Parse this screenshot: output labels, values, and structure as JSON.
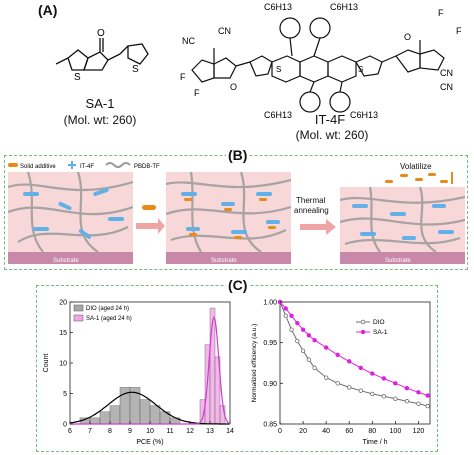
{
  "panel_a": {
    "label": "(A)",
    "sa1": {
      "name": "SA-1",
      "mol_wt": "(Mol. wt: 260)"
    },
    "it4f": {
      "name": "IT-4F",
      "mol_wt": "(Mol. wt: 260)"
    },
    "atoms": {
      "s": "S",
      "o": "O",
      "f": "F",
      "cn": "CN",
      "nc": "NC",
      "c6h13": "C6H13"
    }
  },
  "panel_b": {
    "label": "(B)",
    "legend": {
      "solid_additive": "Solid additive",
      "it4f": "IT-4F",
      "pbdb": "PBDB-TF"
    },
    "substrate": "Substrate",
    "thermal": "Thermal",
    "annealing": "annealing",
    "volatilize": "Volatilize",
    "colors": {
      "additive": "#e88b1a",
      "it4f": "#62b0e8",
      "polymer": "#9a9a9a",
      "film": "#f7d7d7",
      "substrate": "#c889a8"
    }
  },
  "panel_c": {
    "label": "(C)"
  },
  "chart_data": [
    {
      "type": "bar",
      "xlabel": "PCE (%)",
      "ylabel": "Count",
      "xlim": [
        6,
        14
      ],
      "ylim": [
        0,
        20
      ],
      "xticks": [
        "6",
        "7",
        "8",
        "9",
        "10",
        "11",
        "12",
        "13",
        "14"
      ],
      "yticks": [
        "0",
        "5",
        "10",
        "15",
        "20"
      ],
      "legend_position": "top-left",
      "series": [
        {
          "name": "DIO (aged 24 h)",
          "color": "#a8a8a8",
          "bins": [
            6.75,
            7.25,
            7.75,
            8.25,
            8.75,
            9.25,
            9.75,
            10.25,
            10.75,
            11.25
          ],
          "counts": [
            1,
            1,
            2,
            3,
            6,
            6,
            4,
            3,
            2,
            1
          ]
        },
        {
          "name": "SA-1 (aged 24 h)",
          "color": "#f2a6e8",
          "bins": [
            12.625,
            12.875,
            13.125,
            13.375,
            13.625
          ],
          "counts": [
            4,
            13,
            19,
            11,
            3
          ]
        }
      ],
      "fits": [
        {
          "series": "DIO (aged 24 h)",
          "color": "#000000",
          "mu": 9.1,
          "sigma": 1.2,
          "peak": 5.2
        },
        {
          "series": "SA-1 (aged 24 h)",
          "color": "#d33ad0",
          "mu": 13.2,
          "sigma": 0.24,
          "peak": 17.5
        }
      ]
    },
    {
      "type": "line",
      "xlabel": "Time / h",
      "ylabel": "Normalized efficiency (a.u.)",
      "xlim": [
        0,
        130
      ],
      "ylim": [
        0.85,
        1.0
      ],
      "xticks": [
        "0",
        "20",
        "40",
        "60",
        "80",
        "100",
        "120"
      ],
      "yticks": [
        "0.85",
        "0.90",
        "0.95",
        "1.00"
      ],
      "legend_position": "top-right",
      "series": [
        {
          "name": "DIO",
          "color": "#6e6e6e",
          "marker": "circle-open",
          "x": [
            0,
            5,
            10,
            15,
            20,
            25,
            30,
            40,
            50,
            60,
            70,
            80,
            90,
            100,
            110,
            120,
            128
          ],
          "y": [
            1.0,
            0.983,
            0.966,
            0.952,
            0.94,
            0.929,
            0.919,
            0.907,
            0.9,
            0.895,
            0.891,
            0.887,
            0.884,
            0.881,
            0.878,
            0.875,
            0.872
          ]
        },
        {
          "name": "SA-1",
          "color": "#e020e0",
          "marker": "circle-filled",
          "x": [
            0,
            5,
            10,
            15,
            20,
            25,
            30,
            40,
            50,
            60,
            70,
            80,
            90,
            100,
            110,
            120,
            128
          ],
          "y": [
            1.0,
            0.992,
            0.983,
            0.974,
            0.966,
            0.959,
            0.953,
            0.944,
            0.935,
            0.927,
            0.919,
            0.912,
            0.906,
            0.9,
            0.894,
            0.889,
            0.885
          ]
        }
      ]
    }
  ]
}
